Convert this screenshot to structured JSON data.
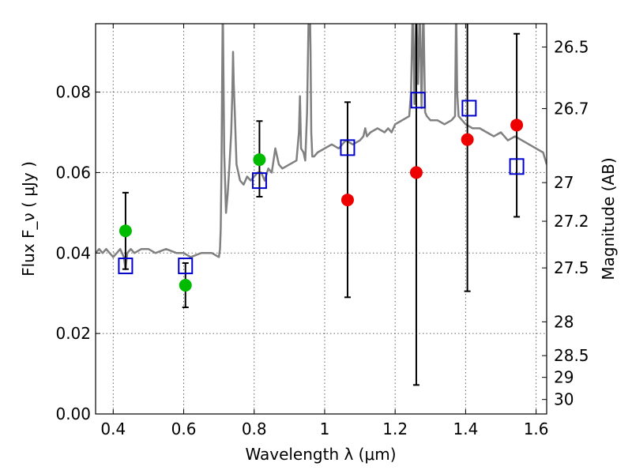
{
  "chart_data": {
    "type": "scatter",
    "xlabel": "Wavelength  λ (μm)",
    "ylabel": "Flux  F_ν  ( μJy )",
    "ylabel_right": "Magnitude (AB)",
    "xlim": [
      0.35,
      1.63
    ],
    "ylim": [
      0.0,
      0.097
    ],
    "xticks": [
      0.4,
      0.6,
      0.8,
      1.0,
      1.2,
      1.4,
      1.6
    ],
    "xtick_labels": [
      "0.4",
      "0.6",
      "0.8",
      "1",
      "1.2",
      "1.4",
      "1.6"
    ],
    "yticks": [
      0.0,
      0.02,
      0.04,
      0.06,
      0.08
    ],
    "ytick_labels": [
      "0.00",
      "0.02",
      "0.04",
      "0.06",
      "0.08"
    ],
    "right_ticks": [
      {
        "label": "26.5",
        "flux": 0.0912
      },
      {
        "label": "26.7",
        "flux": 0.0759
      },
      {
        "label": "27",
        "flux": 0.0575
      },
      {
        "label": "27.2",
        "flux": 0.0479
      },
      {
        "label": "27.5",
        "flux": 0.0363
      },
      {
        "label": "28",
        "flux": 0.0229
      },
      {
        "label": "28.5",
        "flux": 0.0145
      },
      {
        "label": "29",
        "flux": 0.0091
      },
      {
        "label": "30",
        "flux": 0.0036
      }
    ],
    "grid": true,
    "colors": {
      "sed": "#808080",
      "green": "#00bb00",
      "red": "#ee0000",
      "model": "#0000cc",
      "errorbar": "#000000"
    },
    "series": [
      {
        "kind": "line",
        "x": [
          0.35,
          0.36,
          0.37,
          0.38,
          0.39,
          0.4,
          0.41,
          0.42,
          0.43,
          0.435,
          0.44,
          0.45,
          0.46,
          0.48,
          0.5,
          0.52,
          0.55,
          0.58,
          0.6,
          0.62,
          0.65,
          0.68,
          0.7,
          0.703,
          0.705,
          0.707,
          0.709,
          0.711,
          0.715,
          0.72,
          0.725,
          0.73,
          0.735,
          0.738,
          0.74,
          0.742,
          0.745,
          0.75,
          0.76,
          0.77,
          0.78,
          0.79,
          0.8,
          0.81,
          0.82,
          0.83,
          0.84,
          0.85,
          0.86,
          0.87,
          0.88,
          0.9,
          0.92,
          0.927,
          0.93,
          0.933,
          0.94,
          0.945,
          0.95,
          0.955,
          0.958,
          0.96,
          0.962,
          0.965,
          0.97,
          0.98,
          1.0,
          1.02,
          1.04,
          1.06,
          1.08,
          1.1,
          1.11,
          1.115,
          1.12,
          1.13,
          1.15,
          1.17,
          1.18,
          1.19,
          1.2,
          1.22,
          1.24,
          1.245,
          1.25,
          1.255,
          1.26,
          1.265,
          1.27,
          1.275,
          1.28,
          1.285,
          1.29,
          1.3,
          1.32,
          1.34,
          1.36,
          1.37,
          1.373,
          1.376,
          1.38,
          1.4,
          1.42,
          1.44,
          1.46,
          1.48,
          1.5,
          1.52,
          1.54,
          1.56,
          1.58,
          1.6,
          1.62,
          1.63
        ],
        "y": [
          0.04,
          0.041,
          0.04,
          0.041,
          0.04,
          0.039,
          0.04,
          0.041,
          0.039,
          0.036,
          0.04,
          0.041,
          0.04,
          0.041,
          0.041,
          0.04,
          0.041,
          0.04,
          0.04,
          0.039,
          0.04,
          0.04,
          0.039,
          0.041,
          0.046,
          0.06,
          0.08,
          0.102,
          0.065,
          0.05,
          0.055,
          0.062,
          0.07,
          0.08,
          0.09,
          0.082,
          0.075,
          0.062,
          0.058,
          0.057,
          0.059,
          0.058,
          0.059,
          0.06,
          0.06,
          0.058,
          0.061,
          0.06,
          0.066,
          0.062,
          0.061,
          0.062,
          0.063,
          0.07,
          0.079,
          0.066,
          0.065,
          0.063,
          0.075,
          0.102,
          0.102,
          0.09,
          0.07,
          0.064,
          0.064,
          0.065,
          0.066,
          0.067,
          0.066,
          0.068,
          0.067,
          0.068,
          0.069,
          0.071,
          0.069,
          0.07,
          0.071,
          0.07,
          0.071,
          0.07,
          0.072,
          0.073,
          0.074,
          0.08,
          0.102,
          0.077,
          0.102,
          0.082,
          0.102,
          0.076,
          0.102,
          0.075,
          0.074,
          0.073,
          0.073,
          0.072,
          0.073,
          0.074,
          0.102,
          0.08,
          0.074,
          0.072,
          0.071,
          0.071,
          0.07,
          0.069,
          0.07,
          0.068,
          0.069,
          0.068,
          0.067,
          0.066,
          0.065,
          0.062
        ]
      },
      {
        "kind": "points",
        "color": "green",
        "x": [
          0.435,
          0.605,
          0.815
        ],
        "y": [
          0.0455,
          0.032,
          0.0632
        ]
      },
      {
        "kind": "points",
        "color": "red",
        "x": [
          1.065,
          1.26,
          1.405,
          1.545
        ],
        "y": [
          0.0532,
          0.06,
          0.0682,
          0.0718
        ]
      },
      {
        "kind": "errorbars",
        "x": [
          0.435,
          0.605,
          0.815,
          1.065,
          1.26,
          1.405,
          1.545
        ],
        "low": [
          0.036,
          0.0265,
          0.054,
          0.029,
          0.0072,
          0.0305,
          0.049
        ],
        "high": [
          0.055,
          0.0375,
          0.0728,
          0.0775,
          0.1,
          0.1,
          0.0945
        ]
      },
      {
        "kind": "squares",
        "color": "model",
        "x": [
          0.435,
          0.605,
          0.815,
          1.065,
          1.265,
          1.41,
          1.545
        ],
        "y": [
          0.0368,
          0.0368,
          0.058,
          0.0662,
          0.078,
          0.076,
          0.0615
        ]
      }
    ]
  }
}
